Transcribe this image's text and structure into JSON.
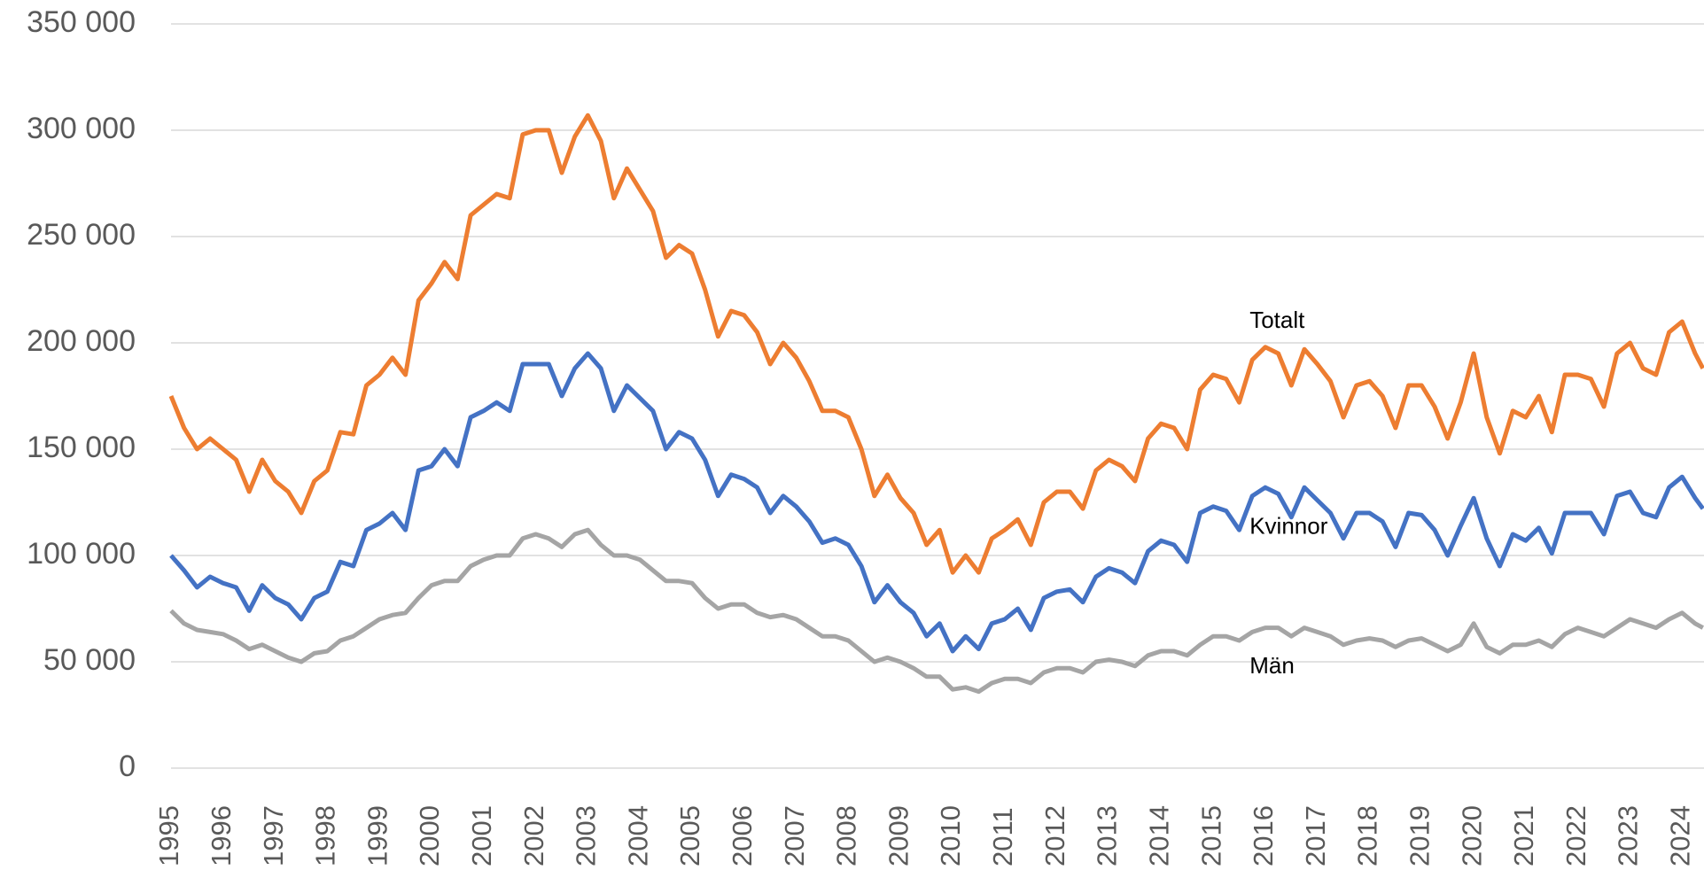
{
  "chart_data": {
    "type": "line",
    "x": [
      1995,
      1995.25,
      1995.5,
      1995.75,
      1996,
      1996.25,
      1996.5,
      1996.75,
      1997,
      1997.25,
      1997.5,
      1997.75,
      1998,
      1998.25,
      1998.5,
      1998.75,
      1999,
      1999.25,
      1999.5,
      1999.75,
      2000,
      2000.25,
      2000.5,
      2000.75,
      2001,
      2001.25,
      2001.5,
      2001.75,
      2002,
      2002.25,
      2002.5,
      2002.75,
      2003,
      2003.25,
      2003.5,
      2003.75,
      2004,
      2004.25,
      2004.5,
      2004.75,
      2005,
      2005.25,
      2005.5,
      2005.75,
      2006,
      2006.25,
      2006.5,
      2006.75,
      2007,
      2007.25,
      2007.5,
      2007.75,
      2008,
      2008.25,
      2008.5,
      2008.75,
      2009,
      2009.25,
      2009.5,
      2009.75,
      2010,
      2010.25,
      2010.5,
      2010.75,
      2011,
      2011.25,
      2011.5,
      2011.75,
      2012,
      2012.25,
      2012.5,
      2012.75,
      2013,
      2013.25,
      2013.5,
      2013.75,
      2014,
      2014.25,
      2014.5,
      2014.75,
      2015,
      2015.25,
      2015.5,
      2015.75,
      2016,
      2016.25,
      2016.5,
      2016.75,
      2017,
      2017.25,
      2017.5,
      2017.75,
      2018,
      2018.25,
      2018.5,
      2018.75,
      2019,
      2019.25,
      2019.5,
      2019.75,
      2020,
      2020.25,
      2020.5,
      2020.75,
      2021,
      2021.25,
      2021.5,
      2021.75,
      2022,
      2022.25,
      2022.5,
      2022.75,
      2023,
      2023.25,
      2023.5,
      2023.75,
      2024,
      2024.25,
      2024.4
    ],
    "series": [
      {
        "name": "Totalt",
        "color": "#ed7d31",
        "values": [
          175000,
          160000,
          150000,
          155000,
          150000,
          145000,
          130000,
          145000,
          135000,
          130000,
          120000,
          135000,
          140000,
          158000,
          157000,
          180000,
          185000,
          193000,
          185000,
          220000,
          228000,
          238000,
          230000,
          260000,
          265000,
          270000,
          268000,
          298000,
          300000,
          300000,
          280000,
          297000,
          307000,
          295000,
          268000,
          282000,
          272000,
          262000,
          240000,
          246000,
          242000,
          225000,
          203000,
          215000,
          213000,
          205000,
          190000,
          200000,
          193000,
          182000,
          168000,
          168000,
          165000,
          150000,
          128000,
          138000,
          127000,
          120000,
          105000,
          112000,
          92000,
          100000,
          92000,
          108000,
          112000,
          117000,
          105000,
          125000,
          130000,
          130000,
          122000,
          140000,
          145000,
          142000,
          135000,
          155000,
          162000,
          160000,
          150000,
          178000,
          185000,
          183000,
          172000,
          192000,
          198000,
          195000,
          180000,
          197000,
          190000,
          182000,
          165000,
          180000,
          182000,
          175000,
          160000,
          180000,
          180000,
          170000,
          155000,
          172000,
          195000,
          165000,
          148000,
          168000,
          165000,
          175000,
          158000,
          185000,
          185000,
          183000,
          170000,
          195000,
          200000,
          188000,
          185000,
          205000,
          210000,
          195000,
          188000
        ]
      },
      {
        "name": "Kvinnor",
        "color": "#4472c4",
        "values": [
          100000,
          93000,
          85000,
          90000,
          87000,
          85000,
          74000,
          86000,
          80000,
          77000,
          70000,
          80000,
          83000,
          97000,
          95000,
          112000,
          115000,
          120000,
          112000,
          140000,
          142000,
          150000,
          142000,
          165000,
          168000,
          172000,
          168000,
          190000,
          190000,
          190000,
          175000,
          188000,
          195000,
          188000,
          168000,
          180000,
          174000,
          168000,
          150000,
          158000,
          155000,
          145000,
          128000,
          138000,
          136000,
          132000,
          120000,
          128000,
          123000,
          116000,
          106000,
          108000,
          105000,
          95000,
          78000,
          86000,
          78000,
          73000,
          62000,
          68000,
          55000,
          62000,
          56000,
          68000,
          70000,
          75000,
          65000,
          80000,
          83000,
          84000,
          78000,
          90000,
          94000,
          92000,
          87000,
          102000,
          107000,
          105000,
          97000,
          120000,
          123000,
          121000,
          112000,
          128000,
          132000,
          129000,
          118000,
          132000,
          126000,
          120000,
          108000,
          120000,
          120000,
          116000,
          104000,
          120000,
          119000,
          112000,
          100000,
          114000,
          127000,
          108000,
          95000,
          110000,
          107000,
          113000,
          101000,
          120000,
          120000,
          120000,
          110000,
          128000,
          130000,
          120000,
          118000,
          132000,
          137000,
          127000,
          122000
        ]
      },
      {
        "name": "Män",
        "color": "#a5a5a5",
        "values": [
          74000,
          68000,
          65000,
          64000,
          63000,
          60000,
          56000,
          58000,
          55000,
          52000,
          50000,
          54000,
          55000,
          60000,
          62000,
          66000,
          70000,
          72000,
          73000,
          80000,
          86000,
          88000,
          88000,
          95000,
          98000,
          100000,
          100000,
          108000,
          110000,
          108000,
          104000,
          110000,
          112000,
          105000,
          100000,
          100000,
          98000,
          93000,
          88000,
          88000,
          87000,
          80000,
          75000,
          77000,
          77000,
          73000,
          71000,
          72000,
          70000,
          66000,
          62000,
          62000,
          60000,
          55000,
          50000,
          52000,
          50000,
          47000,
          43000,
          43000,
          37000,
          38000,
          36000,
          40000,
          42000,
          42000,
          40000,
          45000,
          47000,
          47000,
          45000,
          50000,
          51000,
          50000,
          48000,
          53000,
          55000,
          55000,
          53000,
          58000,
          62000,
          62000,
          60000,
          64000,
          66000,
          66000,
          62000,
          66000,
          64000,
          62000,
          58000,
          60000,
          61000,
          60000,
          57000,
          60000,
          61000,
          58000,
          55000,
          58000,
          68000,
          57000,
          54000,
          58000,
          58000,
          60000,
          57000,
          63000,
          66000,
          64000,
          62000,
          66000,
          70000,
          68000,
          66000,
          70000,
          73000,
          68000,
          66000
        ]
      }
    ],
    "xlim": [
      1995,
      2024.42
    ],
    "xticks": [
      1995,
      1996,
      1997,
      1998,
      1999,
      2000,
      2001,
      2002,
      2003,
      2004,
      2005,
      2006,
      2007,
      2008,
      2009,
      2010,
      2011,
      2012,
      2013,
      2014,
      2015,
      2016,
      2017,
      2018,
      2019,
      2020,
      2021,
      2022,
      2023,
      2024
    ],
    "ylim": [
      0,
      350000
    ],
    "yticks": [
      {
        "value": 0,
        "label": "0"
      },
      {
        "value": 50000,
        "label": "50 000"
      },
      {
        "value": 100000,
        "label": "100 000"
      },
      {
        "value": 150000,
        "label": "150 000"
      },
      {
        "value": 200000,
        "label": "200 000"
      },
      {
        "value": 250000,
        "label": "250 000"
      },
      {
        "value": 300000,
        "label": "300 000"
      },
      {
        "value": 350000,
        "label": "350 000"
      }
    ],
    "grid": true
  }
}
